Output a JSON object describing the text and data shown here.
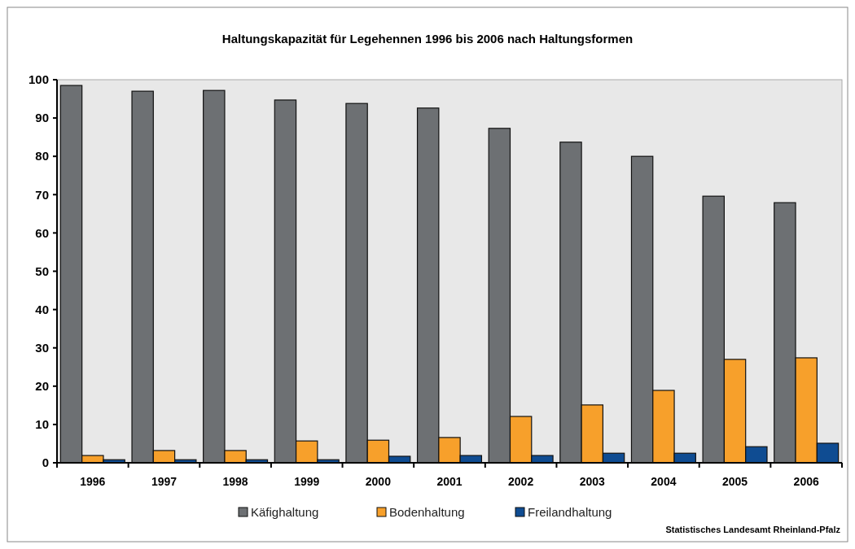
{
  "chart_data": {
    "type": "bar",
    "title": "Haltungskapazität für Legehennen 1996 bis 2006 nach Haltungsformen",
    "categories": [
      "1996",
      "1997",
      "1998",
      "1999",
      "2000",
      "2001",
      "2002",
      "2003",
      "2004",
      "2005",
      "2006"
    ],
    "series": [
      {
        "name": "Käfighaltung",
        "color": "#6d7073",
        "values": [
          98.5,
          97.0,
          97.2,
          94.7,
          93.8,
          92.6,
          87.3,
          83.7,
          80.0,
          69.6,
          67.9
        ]
      },
      {
        "name": "Bodenhaltung",
        "color": "#f7a02b",
        "values": [
          1.9,
          3.2,
          3.2,
          5.7,
          5.9,
          6.6,
          12.1,
          15.1,
          18.9,
          27.0,
          27.4
        ]
      },
      {
        "name": "Freilandhaltung",
        "color": "#0f4c92",
        "values": [
          0.8,
          0.8,
          0.8,
          0.8,
          1.7,
          1.9,
          1.9,
          2.5,
          2.5,
          4.2,
          5.1
        ]
      }
    ],
    "ylim": [
      0,
      100
    ],
    "yticks": [
      0,
      10,
      20,
      30,
      40,
      50,
      60,
      70,
      80,
      90,
      100
    ],
    "grid": false,
    "legend": "bottom",
    "annotations": [
      "Statistisches Landesamt Rheinland-Pfalz"
    ]
  }
}
